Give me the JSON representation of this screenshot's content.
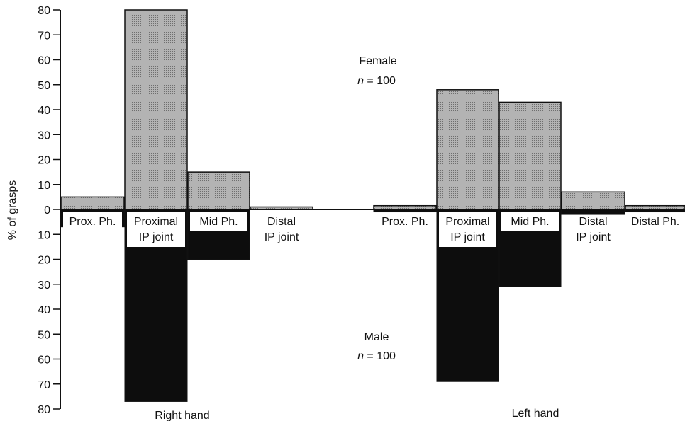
{
  "chart_data": {
    "type": "bar",
    "ylabel": "% of grasps",
    "y_ticks": [
      "80",
      "70",
      "60",
      "50",
      "40",
      "30",
      "20",
      "10",
      "0",
      "10",
      "20",
      "30",
      "40",
      "50",
      "60",
      "70",
      "80"
    ],
    "ylim_upper": [
      0,
      80
    ],
    "ylim_lower": [
      0,
      80
    ],
    "colors": {
      "female": "#a6a6a6",
      "male": "#0d0d0d"
    },
    "annotations": {
      "female": {
        "line1": "Female",
        "n_label": "n",
        "n_value": " = 100"
      },
      "male": {
        "line1": "Male",
        "n_label": "n",
        "n_value": " = 100"
      }
    },
    "groups": [
      {
        "name": "Right hand",
        "categories": [
          {
            "label": [
              "Prox. Ph."
            ],
            "female": 5,
            "male": 7,
            "label_boxed": true
          },
          {
            "label": [
              "Proximal",
              "IP joint"
            ],
            "female": 80,
            "male": 77,
            "label_boxed": true
          },
          {
            "label": [
              "Mid Ph."
            ],
            "female": 15,
            "male": 20,
            "label_boxed": true
          },
          {
            "label": [
              "Distal",
              "IP joint"
            ],
            "female": 1,
            "male": 0,
            "label_boxed": false
          }
        ]
      },
      {
        "name": "Left hand",
        "categories": [
          {
            "label": [
              "Prox. Ph."
            ],
            "female": 1.5,
            "male": 1,
            "label_boxed": false
          },
          {
            "label": [
              "Proximal",
              "IP joint"
            ],
            "female": 48,
            "male": 69,
            "label_boxed": true
          },
          {
            "label": [
              "Mid Ph."
            ],
            "female": 43,
            "male": 31,
            "label_boxed": true
          },
          {
            "label": [
              "Distal",
              "IP joint"
            ],
            "female": 7,
            "male": 2,
            "label_boxed": false
          },
          {
            "label": [
              "Distal Ph."
            ],
            "female": 1.5,
            "male": 1,
            "label_boxed": false
          }
        ]
      }
    ]
  }
}
